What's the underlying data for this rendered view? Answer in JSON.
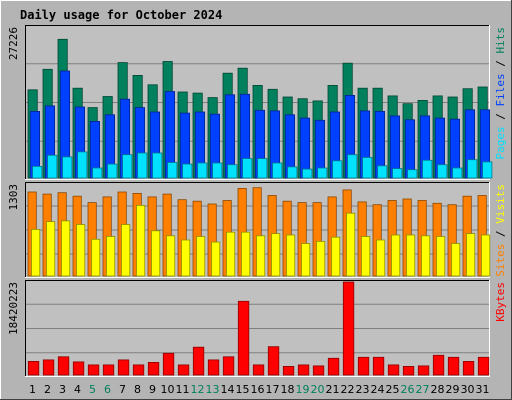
{
  "chart_data": {
    "type": "bar",
    "title": "Daily usage for October 2024",
    "colors": {
      "background": "#b4b4b4",
      "plot": "#c0c0c0",
      "title": "#0000ff",
      "hits": "#00805c",
      "files": "#0040ff",
      "pages": "#00e0ff",
      "visits": "#ffff00",
      "sites": "#ff8000",
      "kbytes": "#ff0000",
      "weekend": "#00805c"
    },
    "categories": [
      "1",
      "2",
      "3",
      "4",
      "5",
      "6",
      "7",
      "8",
      "9",
      "10",
      "11",
      "12",
      "13",
      "14",
      "15",
      "16",
      "17",
      "18",
      "19",
      "20",
      "21",
      "22",
      "23",
      "24",
      "25",
      "26",
      "27",
      "28",
      "29",
      "30",
      "31"
    ],
    "weekend_days": [
      "5",
      "6",
      "12",
      "13",
      "19",
      "20",
      "26",
      "27"
    ],
    "panels": [
      {
        "id": "hits-files-pages",
        "ymax_label": "27226",
        "ymax": 27226,
        "legend": [
          {
            "text": "Pages",
            "color": "#00e0ff"
          },
          {
            "text": " / ",
            "color": "#000000"
          },
          {
            "text": "Files",
            "color": "#0040ff"
          },
          {
            "text": " / ",
            "color": "#000000"
          },
          {
            "text": "Hits",
            "color": "#00805c"
          }
        ],
        "series": [
          {
            "name": "Hits",
            "color": "#00805c",
            "values": [
              15900,
              19600,
              25000,
              16200,
              12700,
              14700,
              20800,
              18500,
              16800,
              21000,
              15500,
              15300,
              14500,
              18900,
              19800,
              16700,
              16000,
              14600,
              14300,
              13900,
              16700,
              20700,
              16200,
              16200,
              14800,
              13400,
              14000,
              14800,
              14600,
              16100,
              16400
            ]
          },
          {
            "name": "Files",
            "color": "#0040ff",
            "values": [
              12000,
              13000,
              19300,
              12800,
              10200,
              11400,
              14200,
              12700,
              11900,
              15600,
              11700,
              11900,
              11500,
              15000,
              15100,
              12200,
              12100,
              11400,
              10800,
              10400,
              11900,
              14900,
              12100,
              12000,
              11200,
              10500,
              11200,
              10800,
              10600,
              12300,
              12300
            ]
          },
          {
            "name": "Pages",
            "color": "#00e0ff",
            "values": [
              2100,
              4100,
              3800,
              4700,
              1800,
              2500,
              4200,
              4500,
              4500,
              2800,
              2500,
              2700,
              2700,
              2400,
              3500,
              3500,
              2700,
              2000,
              1600,
              1800,
              3100,
              4200,
              3700,
              2200,
              1700,
              1500,
              3200,
              2400,
              1800,
              3300,
              2900
            ]
          }
        ]
      },
      {
        "id": "sites-visits",
        "ymax_label": "1303",
        "ymax": 1303,
        "legend": [
          {
            "text": "Sites",
            "color": "#ff8000"
          },
          {
            "text": " / ",
            "color": "#000000"
          },
          {
            "text": "Visits",
            "color": "#ffff00"
          }
        ],
        "series": [
          {
            "name": "Sites",
            "color": "#ff8000",
            "values": [
              1190,
              1160,
              1180,
              1130,
              1040,
              1120,
              1190,
              1170,
              1120,
              1160,
              1080,
              1060,
              1020,
              1070,
              1240,
              1250,
              1140,
              1060,
              1040,
              1040,
              1120,
              1220,
              1050,
              1010,
              1070,
              1090,
              1070,
              1030,
              1010,
              1130,
              1140
            ]
          },
          {
            "name": "Visits",
            "color": "#ffff00",
            "values": [
              660,
              770,
              780,
              730,
              520,
              560,
              730,
              1000,
              640,
              570,
              510,
              560,
              480,
              620,
              620,
              570,
              600,
              580,
              460,
              490,
              550,
              890,
              560,
              510,
              580,
              580,
              570,
              560,
              460,
              600,
              580
            ]
          }
        ]
      },
      {
        "id": "kbytes",
        "ymax_label": "18420223",
        "ymax": 18420223,
        "legend": [
          {
            "text": "KBytes",
            "color": "#ff0000"
          }
        ],
        "series": [
          {
            "name": "KBytes",
            "color": "#ff0000",
            "values": [
              2700000,
              3000000,
              3600000,
              2600000,
              2000000,
              2000000,
              3000000,
              2000000,
              2500000,
              4300000,
              2000000,
              5500000,
              3000000,
              3600000,
              14600000,
              2000000,
              5600000,
              1700000,
              2000000,
              1800000,
              3300000,
              18420223,
              3500000,
              3500000,
              2000000,
              1700000,
              1800000,
              3900000,
              3500000,
              2700000,
              3500000
            ]
          }
        ]
      }
    ]
  }
}
